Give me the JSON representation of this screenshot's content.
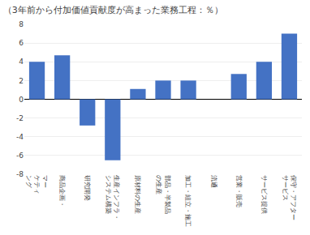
{
  "chart_data": {
    "type": "bar",
    "title": "（3年前から付加価値貢献度が高まった業務工程：％）",
    "categories": [
      "マー\nケティ\nング",
      "商品企画・",
      "研究開発",
      "生産インフラ・\nシステム構築",
      "原材料の生産",
      "部品・半製品\nの生産",
      "加工・組立・施工",
      "流通",
      "営業・販売",
      "サービス提供",
      "保守・アフター\nサービス"
    ],
    "values": [
      4.0,
      4.7,
      -2.8,
      -6.5,
      1.1,
      2.0,
      2.0,
      0.0,
      2.7,
      4.0,
      7.0
    ],
    "color": "#4472C4",
    "ylim": [
      -8,
      8
    ],
    "yticks": [
      -8,
      -6,
      -4,
      -2,
      0,
      2,
      4,
      6,
      8
    ],
    "grid": true
  }
}
